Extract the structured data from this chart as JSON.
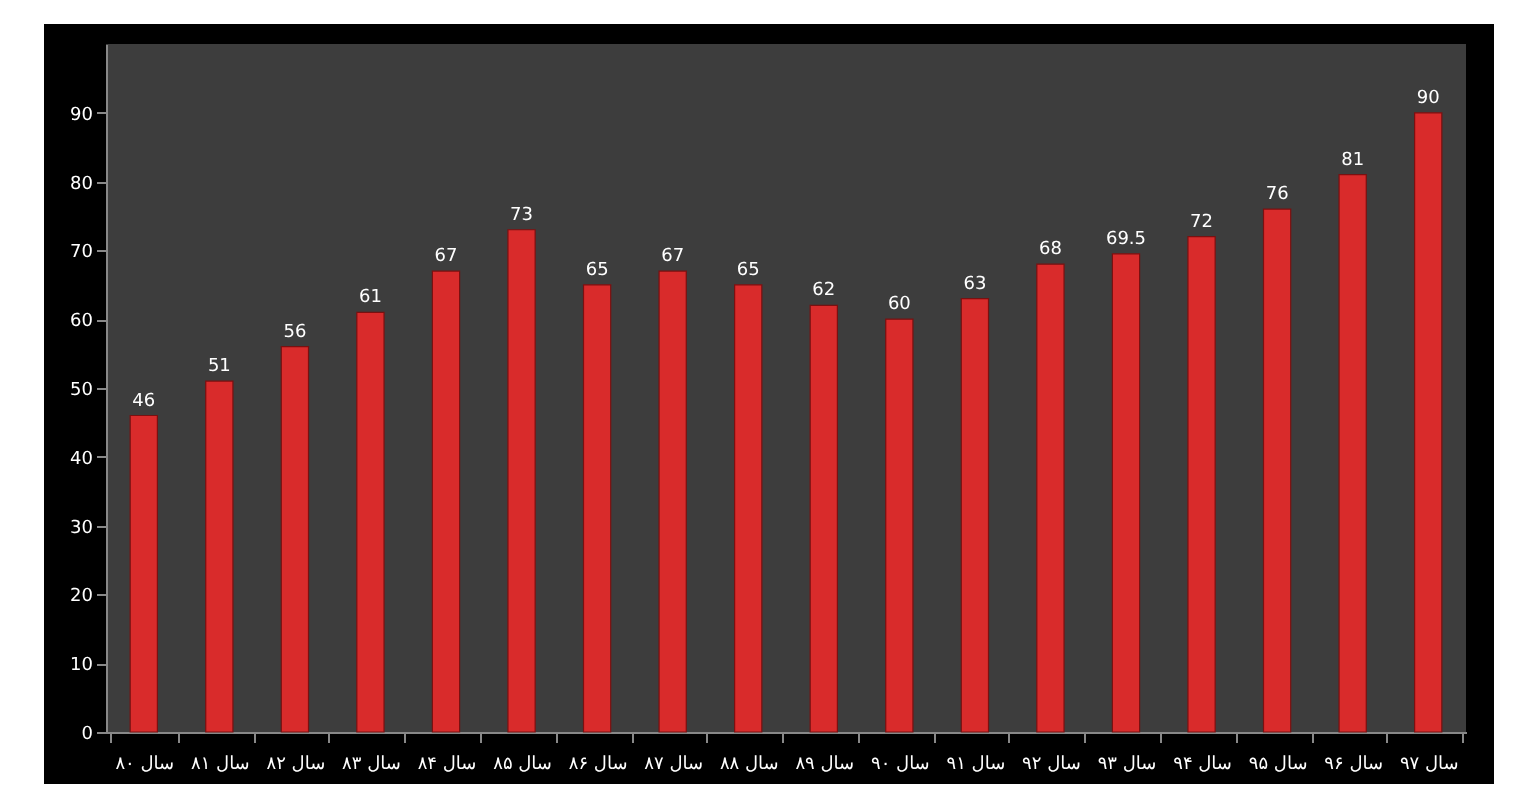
{
  "chart_data": {
    "type": "bar",
    "categories": [
      "سال ۸۰",
      "سال ۸۱",
      "سال ۸۲",
      "سال ۸۳",
      "سال ۸۴",
      "سال ۸۵",
      "سال ۸۶",
      "سال ۸۷",
      "سال ۸۸",
      "سال ۸۹",
      "سال ۹۰",
      "سال ۹۱",
      "سال ۹۲",
      "سال ۹۳",
      "سال ۹۴",
      "سال ۹۵",
      "سال ۹۶",
      "سال ۹۷"
    ],
    "values": [
      46,
      51,
      56,
      61,
      67,
      73,
      65,
      67,
      65,
      62,
      60,
      63,
      68,
      69.5,
      72,
      76,
      81,
      90
    ],
    "color": "#d92b2b",
    "ylim": [
      0,
      100
    ],
    "yticks": [
      0,
      10,
      20,
      30,
      40,
      50,
      60,
      70,
      80,
      90
    ],
    "data_labels": true,
    "grid": false
  }
}
